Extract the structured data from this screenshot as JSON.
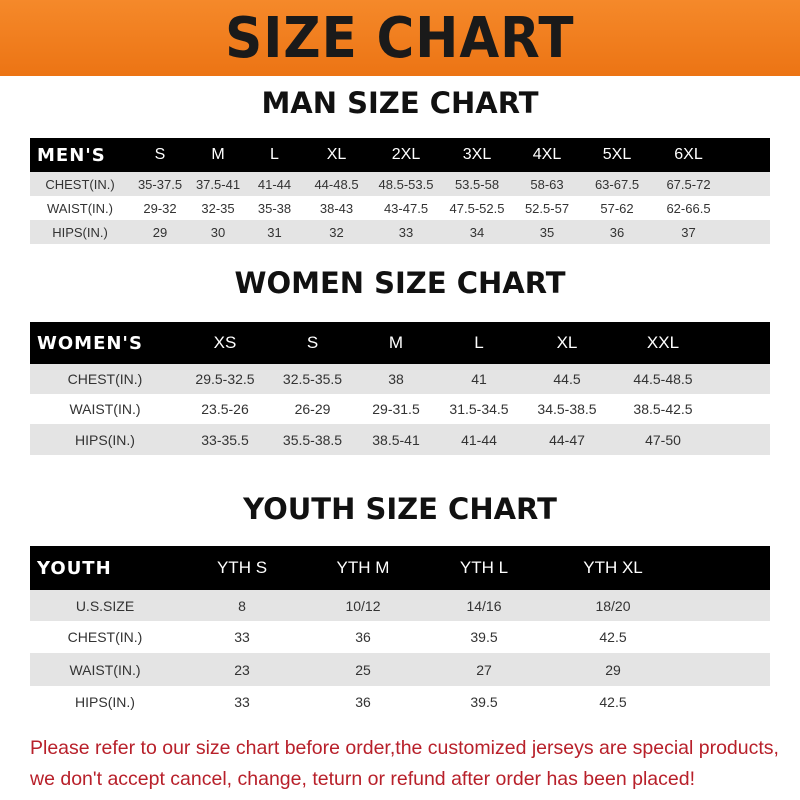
{
  "title": "SIZE CHART",
  "men": {
    "title": "MAN SIZE CHART",
    "header": [
      "MEN'S",
      "S",
      "M",
      "L",
      "XL",
      "2XL",
      "3XL",
      "4XL",
      "5XL",
      "6XL"
    ],
    "rows": [
      [
        "CHEST(IN.)",
        "35-37.5",
        "37.5-41",
        "41-44",
        "44-48.5",
        "48.5-53.5",
        "53.5-58",
        "58-63",
        "63-67.5",
        "67.5-72"
      ],
      [
        "WAIST(IN.)",
        "29-32",
        "32-35",
        "35-38",
        "38-43",
        "43-47.5",
        "47.5-52.5",
        "52.5-57",
        "57-62",
        "62-66.5"
      ],
      [
        "HIPS(IN.)",
        "29",
        "30",
        "31",
        "32",
        "33",
        "34",
        "35",
        "36",
        "37"
      ]
    ]
  },
  "women": {
    "title": "WOMEN SIZE CHART",
    "header": [
      "WOMEN'S",
      "XS",
      "S",
      "M",
      "L",
      "XL",
      "XXL"
    ],
    "rows": [
      [
        "CHEST(IN.)",
        "29.5-32.5",
        "32.5-35.5",
        "38",
        "41",
        "44.5",
        "44.5-48.5"
      ],
      [
        "WAIST(IN.)",
        "23.5-26",
        "26-29",
        "29-31.5",
        "31.5-34.5",
        "34.5-38.5",
        "38.5-42.5"
      ],
      [
        "HIPS(IN.)",
        "33-35.5",
        "35.5-38.5",
        "38.5-41",
        "41-44",
        "44-47",
        "47-50"
      ]
    ]
  },
  "youth": {
    "title": "YOUTH SIZE CHART",
    "header": [
      "YOUTH",
      "YTH S",
      "YTH M",
      "YTH L",
      "YTH XL"
    ],
    "rows": [
      [
        "U.S.SIZE",
        "8",
        "10/12",
        "14/16",
        "18/20"
      ],
      [
        "CHEST(IN.)",
        "33",
        "36",
        "39.5",
        "42.5"
      ],
      [
        "WAIST(IN.)",
        "23",
        "25",
        "27",
        "29"
      ],
      [
        "HIPS(IN.)",
        "33",
        "36",
        "39.5",
        "42.5"
      ]
    ]
  },
  "footer": {
    "line1": "Please refer to our size chart before order,the customized jerseys are special products,",
    "line2": "we don't accept cancel, change, teturn or refund after order has been placed!"
  },
  "colors": {
    "banner": "#ef7d1c",
    "header": "#000000",
    "stripe": "#e4e4e4",
    "notice": "#b8202a"
  }
}
